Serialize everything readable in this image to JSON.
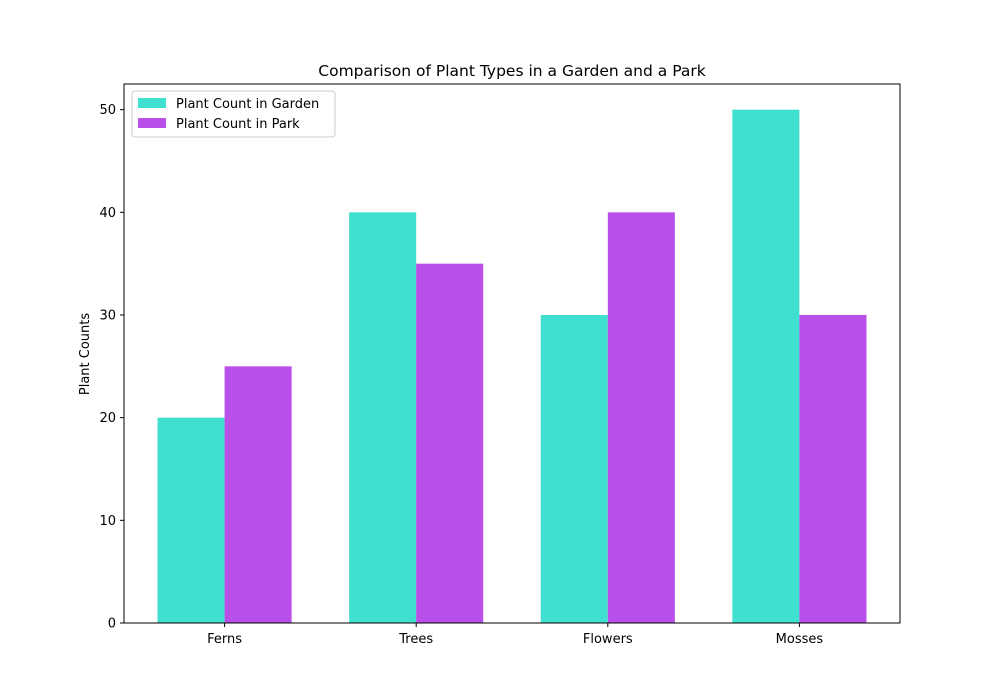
{
  "chart_data": {
    "type": "bar",
    "title": "Comparison of Plant Types in a Garden and a Park",
    "xlabel": "",
    "ylabel": "Plant Counts",
    "categories": [
      "Ferns",
      "Trees",
      "Flowers",
      "Mosses"
    ],
    "series": [
      {
        "name": "Plant Count in Garden",
        "values": [
          20,
          40,
          30,
          50
        ],
        "color": "#40E0D0"
      },
      {
        "name": "Plant Count in Park",
        "values": [
          25,
          35,
          40,
          30
        ],
        "color": "#B84FE8"
      }
    ],
    "ylim": [
      0,
      52.5
    ],
    "yticks": [
      0,
      10,
      20,
      30,
      40,
      50
    ],
    "grid": false,
    "legend_position": "top-left"
  }
}
